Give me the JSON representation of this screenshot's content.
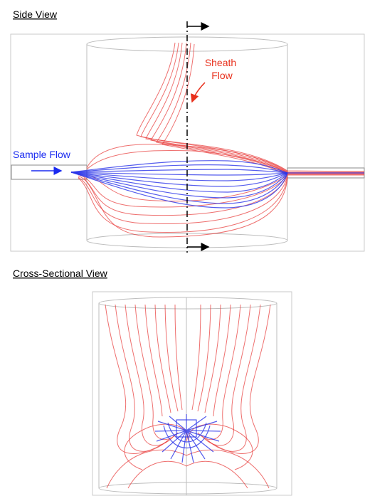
{
  "side_view": {
    "title": "Side View",
    "sheath_flow": [
      "Sheath",
      "Flow"
    ],
    "sample_flow": "Sample Flow"
  },
  "cross_section": {
    "title": "Cross-Sectional View"
  }
}
